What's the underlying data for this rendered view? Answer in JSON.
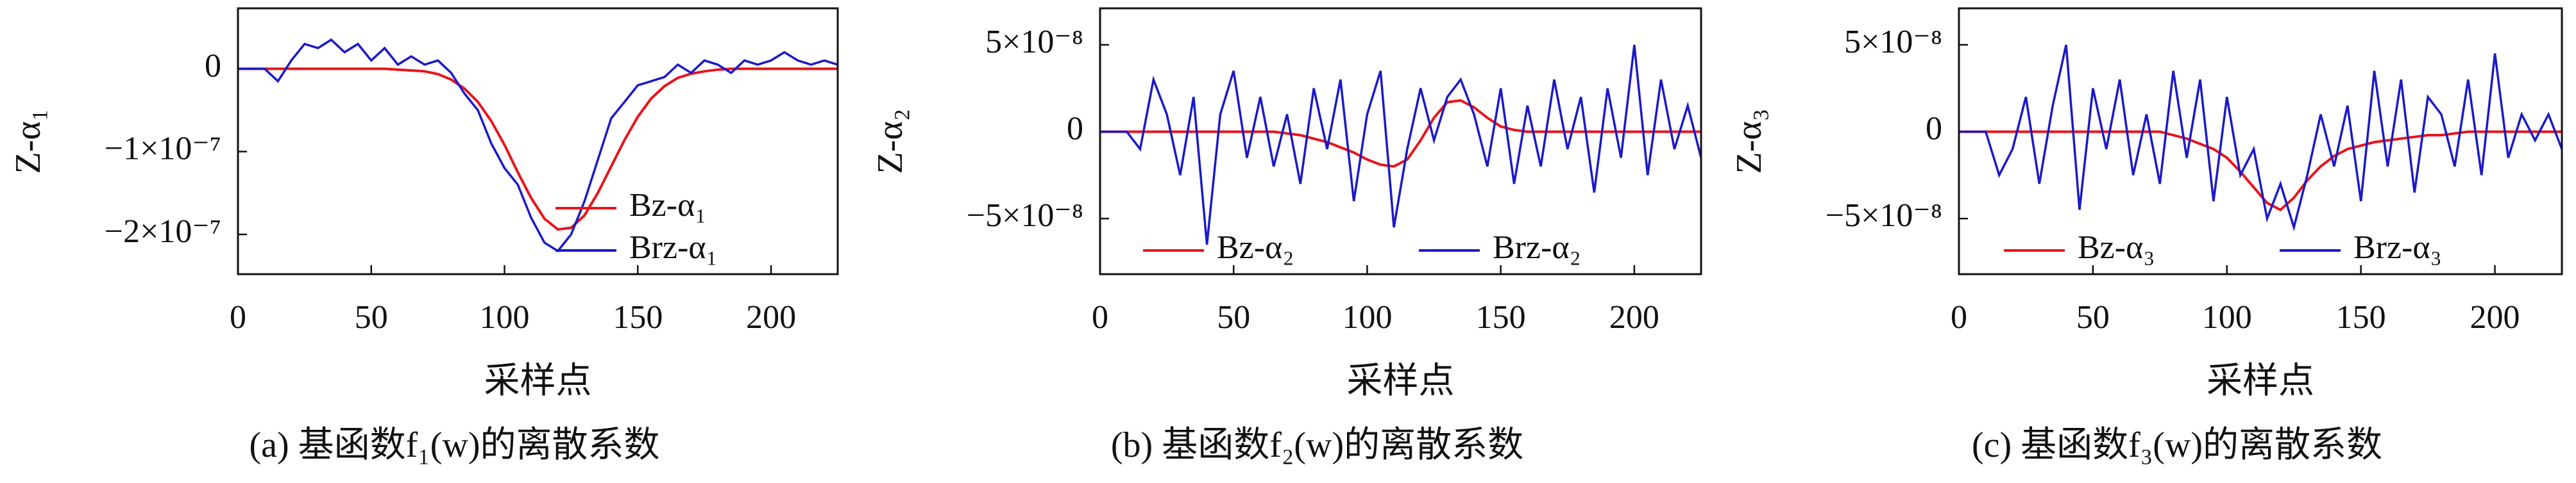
{
  "chart_data": [
    {
      "type": "line",
      "caption": "(a) 基函数f₁(w)的离散系数",
      "xlabel": "采样点",
      "ylabel": "Z-α₁",
      "x": [
        0,
        5,
        10,
        15,
        20,
        25,
        30,
        35,
        40,
        45,
        50,
        55,
        60,
        65,
        70,
        75,
        80,
        85,
        90,
        95,
        100,
        105,
        110,
        115,
        120,
        125,
        130,
        135,
        140,
        145,
        150,
        155,
        160,
        165,
        170,
        175,
        180,
        185,
        190,
        195,
        200,
        205,
        210,
        215,
        220,
        225
      ],
      "series": [
        {
          "name": "Bz-α₁",
          "color": "#e8141b",
          "values": [
            0,
            0,
            0,
            0,
            0,
            0,
            0,
            0,
            0,
            0,
            0,
            0,
            -1e-09,
            -2e-09,
            -3e-09,
            -6.4e-09,
            -1.3e-08,
            -2.4e-08,
            -4e-08,
            -6.3e-08,
            -9.2e-08,
            -1.25e-07,
            -1.56e-07,
            -1.81e-07,
            -1.94e-07,
            -1.92e-07,
            -1.77e-07,
            -1.5e-07,
            -1.18e-07,
            -8.6e-08,
            -5.8e-08,
            -3.6e-08,
            -2.1e-08,
            -1.1e-08,
            -6e-09,
            -3e-09,
            -1e-09,
            0,
            0,
            0,
            0,
            0,
            0,
            0,
            0,
            0
          ]
        },
        {
          "name": "Brz-α₁",
          "color": "#1a1ac8",
          "values": [
            0,
            0,
            0,
            -1.5e-08,
            1e-08,
            3e-08,
            2.5e-08,
            3.5e-08,
            2e-08,
            3e-08,
            1e-08,
            2.5e-08,
            5e-09,
            1.5e-08,
            5e-09,
            1e-08,
            -5e-09,
            -3e-08,
            -5e-08,
            -9e-08,
            -1.2e-07,
            -1.4e-07,
            -1.8e-07,
            -2.1e-07,
            -2.2e-07,
            -2e-07,
            -1.6e-07,
            -1.1e-07,
            -6e-08,
            -4e-08,
            -2e-08,
            -1.5e-08,
            -1e-08,
            5e-09,
            -5e-09,
            1e-08,
            5e-09,
            -5e-09,
            1e-08,
            5e-09,
            1e-08,
            2e-08,
            1e-08,
            5e-09,
            1e-08,
            5e-09
          ]
        }
      ],
      "xlim": [
        0,
        225
      ],
      "xticks": [
        0,
        50,
        100,
        150,
        200
      ],
      "ylim": [
        -2.48e-07,
        7.3e-08
      ],
      "yticks": [
        {
          "value": -2e-07,
          "label": "−2×10⁻⁷"
        },
        {
          "value": -1e-07,
          "label": "−1×10⁻⁷"
        },
        0
      ],
      "legend": "lower right",
      "legend_columns": 1
    },
    {
      "type": "line",
      "caption": "(b) 基函数f₂(w)的离散系数",
      "xlabel": "采样点",
      "ylabel": "Z-α₂",
      "x": [
        0,
        5,
        10,
        15,
        20,
        25,
        30,
        35,
        40,
        45,
        50,
        55,
        60,
        65,
        70,
        75,
        80,
        85,
        90,
        95,
        100,
        105,
        110,
        115,
        120,
        125,
        130,
        135,
        140,
        145,
        150,
        155,
        160,
        165,
        170,
        175,
        180,
        185,
        190,
        195,
        200,
        205,
        210,
        215,
        220,
        225
      ],
      "series": [
        {
          "name": "Bz-α₂",
          "color": "#e8141b",
          "values": [
            0,
            0,
            0,
            0,
            0,
            0,
            0,
            0,
            0,
            0,
            0,
            0,
            0,
            0,
            -1e-09,
            -2e-09,
            -4e-09,
            -6e-09,
            -9e-09,
            -1.2e-08,
            -1.6e-08,
            -1.9e-08,
            -2e-08,
            -1.6e-08,
            -5e-09,
            8e-09,
            1.7e-08,
            1.8e-08,
            1.4e-08,
            8e-09,
            3e-09,
            1e-09,
            0,
            0,
            0,
            0,
            0,
            0,
            0,
            0,
            0,
            0,
            0,
            0,
            0,
            0
          ]
        },
        {
          "name": "Brz-α₂",
          "color": "#1a1ac8",
          "values": [
            0,
            0,
            0,
            -1e-08,
            3e-08,
            1e-08,
            -2.5e-08,
            2e-08,
            -6.5e-08,
            1e-08,
            3.5e-08,
            -1.5e-08,
            2e-08,
            -2e-08,
            1e-08,
            -3e-08,
            2.5e-08,
            -1e-08,
            3e-08,
            -4e-08,
            1e-08,
            3.5e-08,
            -5.5e-08,
            -1e-08,
            2.5e-08,
            -5e-09,
            2e-08,
            3e-08,
            1e-08,
            -2e-08,
            2.5e-08,
            -3e-08,
            1.5e-08,
            -2e-08,
            3e-08,
            -1e-08,
            2e-08,
            -3.5e-08,
            2.5e-08,
            -1.5e-08,
            5e-08,
            -2.5e-08,
            3e-08,
            -1e-08,
            1.5e-08,
            -1.5e-08
          ]
        }
      ],
      "xlim": [
        0,
        225
      ],
      "xticks": [
        0,
        50,
        100,
        150,
        200
      ],
      "ylim": [
        -8.2e-08,
        7.1e-08
      ],
      "yticks": [
        {
          "value": -5e-08,
          "label": "−5×10⁻⁸"
        },
        0,
        {
          "value": 5e-08,
          "label": "5×10⁻⁸"
        }
      ],
      "legend": "lower right",
      "legend_columns": 2
    },
    {
      "type": "line",
      "caption": "(c) 基函数f₃(w)的离散系数",
      "xlabel": "采样点",
      "ylabel": "Z-α₃",
      "x": [
        0,
        5,
        10,
        15,
        20,
        25,
        30,
        35,
        40,
        45,
        50,
        55,
        60,
        65,
        70,
        75,
        80,
        85,
        90,
        95,
        100,
        105,
        110,
        115,
        120,
        125,
        130,
        135,
        140,
        145,
        150,
        155,
        160,
        165,
        170,
        175,
        180,
        185,
        190,
        195,
        200,
        205,
        210,
        215,
        220,
        225
      ],
      "series": [
        {
          "name": "Bz-α₃",
          "color": "#e8141b",
          "values": [
            0,
            0,
            0,
            0,
            0,
            0,
            0,
            0,
            0,
            0,
            0,
            0,
            0,
            0,
            0,
            0,
            -2e-09,
            -4e-09,
            -7e-09,
            -1e-08,
            -1.5e-08,
            -2.3e-08,
            -3.2e-08,
            -4.1e-08,
            -4.5e-08,
            -3.8e-08,
            -2.8e-08,
            -2e-08,
            -1.4e-08,
            -1e-08,
            -8e-09,
            -6e-09,
            -5e-09,
            -4e-09,
            -3e-09,
            -2e-09,
            -2e-09,
            -1e-09,
            0,
            0,
            0,
            0,
            0,
            0,
            0,
            0
          ]
        },
        {
          "name": "Brz-α₃",
          "color": "#1a1ac8",
          "values": [
            0,
            0,
            0,
            -2.5e-08,
            -1e-08,
            2e-08,
            -3e-08,
            1.5e-08,
            5e-08,
            -4.5e-08,
            2.5e-08,
            -1e-08,
            3e-08,
            -2.5e-08,
            1e-08,
            -3e-08,
            3.5e-08,
            -1.5e-08,
            3e-08,
            -4e-08,
            2e-08,
            -2.5e-08,
            -1e-08,
            -5e-08,
            -3e-08,
            -5.5e-08,
            -2.5e-08,
            1e-08,
            -2e-08,
            1.5e-08,
            -4e-08,
            3.5e-08,
            -2e-08,
            3e-08,
            -3.5e-08,
            2e-08,
            1e-08,
            -2e-08,
            3e-08,
            -2.5e-08,
            4.5e-08,
            -1.5e-08,
            1e-08,
            -5e-09,
            1e-08,
            -1e-08
          ]
        }
      ],
      "xlim": [
        0,
        225
      ],
      "xticks": [
        0,
        50,
        100,
        150,
        200
      ],
      "ylim": [
        -8.2e-08,
        7.1e-08
      ],
      "yticks": [
        {
          "value": -5e-08,
          "label": "−5×10⁻⁸"
        },
        0,
        {
          "value": 5e-08,
          "label": "5×10⁻⁸"
        }
      ],
      "legend": "lower right",
      "legend_columns": 2
    }
  ]
}
